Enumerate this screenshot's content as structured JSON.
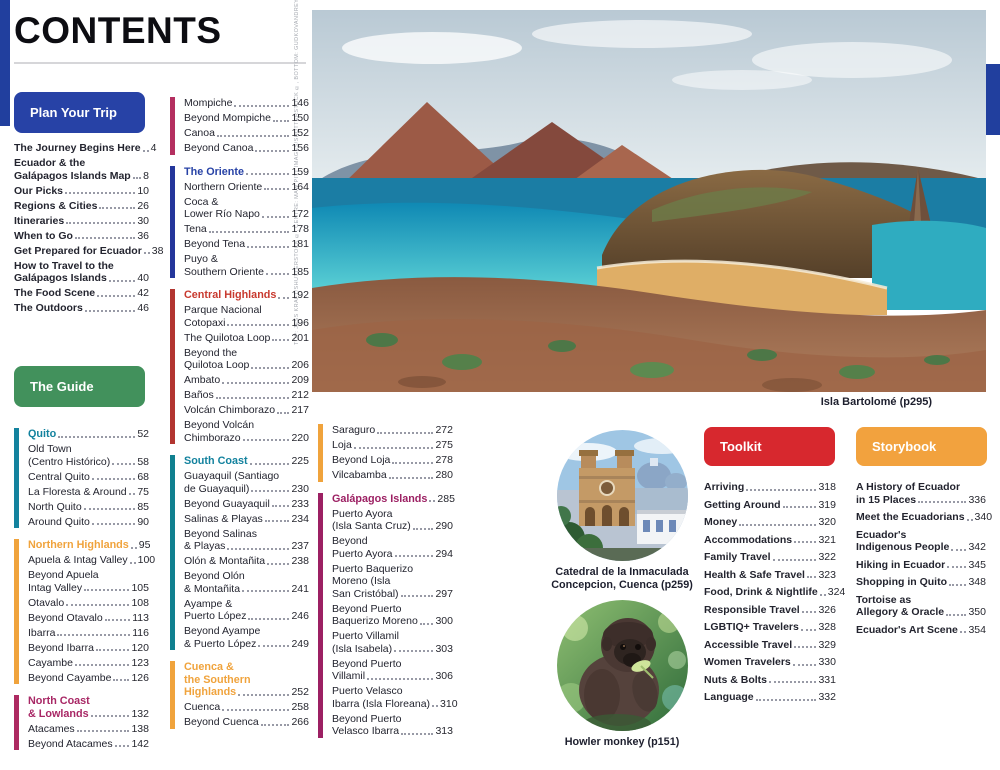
{
  "page_title": "CONTENTS",
  "credits_vertical": "TOP: JESS KRAFT/SHUTTERSTOCK ©, CENTRE: MAW PITT IMAGES/SHUTTERSTOCK ©, BOTTOM: GUDKOVANDREY/SHUTTERSTOCK ©",
  "colors": {
    "accent_blue": "#213f9e",
    "plan_btn": "#2742a6",
    "guide_btn": "#42915c",
    "toolkit_btn": "#d7282e",
    "storybook_btn": "#f2a23e",
    "teal": "#13829e",
    "orange": "#f0a33c",
    "magenta": "#ad2a62",
    "blue": "#2742a6",
    "red": "#c0362c",
    "purple": "#9c2063"
  },
  "buttons": {
    "plan": "Plan Your Trip",
    "guide": "The Guide",
    "toolkit": "Toolkit",
    "storybook": "Storybook"
  },
  "captions": {
    "main_photo": "Isla Bartolomé (p295)",
    "circle1_line1": "Catedral de la Inmaculada",
    "circle1_line2": "Concepcion, Cuenca (p259)",
    "circle2": "Howler monkey (p151)"
  },
  "plan_items": [
    {
      "lines": [
        "The Journey Begins Here"
      ],
      "page": "4"
    },
    {
      "lines": [
        "Ecuador & the",
        "Galápagos Islands Map"
      ],
      "page": "8"
    },
    {
      "lines": [
        "Our Picks"
      ],
      "page": "10"
    },
    {
      "lines": [
        "Regions & Cities"
      ],
      "page": "26"
    },
    {
      "lines": [
        "Itineraries"
      ],
      "page": "30"
    },
    {
      "lines": [
        "When to Go"
      ],
      "page": "36"
    },
    {
      "lines": [
        "Get Prepared for Ecuador"
      ],
      "page": "38"
    },
    {
      "lines": [
        "How to Travel to the",
        "Galápagos Islands"
      ],
      "page": "40"
    },
    {
      "lines": [
        "The Food Scene"
      ],
      "page": "42"
    },
    {
      "lines": [
        "The Outdoors"
      ],
      "page": "46"
    }
  ],
  "col1_sections": [
    {
      "bar": "#13829e",
      "items": [
        {
          "lines": [
            "Quito"
          ],
          "page": "52",
          "header": true,
          "color": "#13829e"
        },
        {
          "lines": [
            "Old Town",
            "(Centro Histórico)"
          ],
          "page": "58"
        },
        {
          "lines": [
            "Central Quito"
          ],
          "page": "68"
        },
        {
          "lines": [
            "La Floresta & Around"
          ],
          "page": "75"
        },
        {
          "lines": [
            "North Quito"
          ],
          "page": "85"
        },
        {
          "lines": [
            "Around Quito"
          ],
          "page": "90"
        }
      ]
    },
    {
      "bar": "#f0a33c",
      "items": [
        {
          "lines": [
            "Northern Highlands"
          ],
          "page": "95",
          "header": true,
          "color": "#f0a33c"
        },
        {
          "lines": [
            "Apuela & Intag Valley"
          ],
          "page": "100"
        },
        {
          "lines": [
            "Beyond Apuela",
            "Intag Valley"
          ],
          "page": "105"
        },
        {
          "lines": [
            "Otavalo"
          ],
          "page": "108"
        },
        {
          "lines": [
            "Beyond Otavalo"
          ],
          "page": "113"
        },
        {
          "lines": [
            "Ibarra"
          ],
          "page": "116"
        },
        {
          "lines": [
            "Beyond Ibarra"
          ],
          "page": "120"
        },
        {
          "lines": [
            "Cayambe"
          ],
          "page": "123"
        },
        {
          "lines": [
            "Beyond Cayambe"
          ],
          "page": "126"
        }
      ]
    },
    {
      "bar": "#ad2a62",
      "items": [
        {
          "lines": [
            "North Coast",
            "& Lowlands"
          ],
          "page": "132",
          "header": true,
          "color": "#a82765"
        },
        {
          "lines": [
            "Atacames"
          ],
          "page": "138"
        },
        {
          "lines": [
            "Beyond Atacames"
          ],
          "page": "142"
        }
      ]
    }
  ],
  "col2_sections": [
    {
      "bar": "#b42f60",
      "items": [
        {
          "lines": [
            "Mompiche"
          ],
          "page": "146"
        },
        {
          "lines": [
            "Beyond Mompiche"
          ],
          "page": "150"
        },
        {
          "lines": [
            "Canoa"
          ],
          "page": "152"
        },
        {
          "lines": [
            "Beyond Canoa"
          ],
          "page": "156"
        }
      ]
    },
    {
      "bar": "#24369b",
      "items": [
        {
          "lines": [
            "The Oriente"
          ],
          "page": "159",
          "header": true,
          "color": "#2742a6"
        },
        {
          "lines": [
            "Northern Oriente"
          ],
          "page": "164"
        },
        {
          "lines": [
            "Coca &",
            "Lower Río Napo"
          ],
          "page": "172"
        },
        {
          "lines": [
            "Tena"
          ],
          "page": "178"
        },
        {
          "lines": [
            "Beyond Tena"
          ],
          "page": "181"
        },
        {
          "lines": [
            "Puyo &",
            "Southern Oriente"
          ],
          "page": "185"
        }
      ]
    },
    {
      "bar": "#b23530",
      "items": [
        {
          "lines": [
            "Central Highlands"
          ],
          "page": "192",
          "header": true,
          "color": "#c8392e"
        },
        {
          "lines": [
            "Parque Nacional",
            "Cotopaxi"
          ],
          "page": "196"
        },
        {
          "lines": [
            "The Quilotoa Loop"
          ],
          "page": "201"
        },
        {
          "lines": [
            "Beyond the",
            "Quilotoa Loop"
          ],
          "page": "206"
        },
        {
          "lines": [
            "Ambato"
          ],
          "page": "209"
        },
        {
          "lines": [
            "Baños"
          ],
          "page": "212"
        },
        {
          "lines": [
            "Volcán Chimborazo"
          ],
          "page": "217"
        },
        {
          "lines": [
            "Beyond Volcán",
            "Chimborazo"
          ],
          "page": "220"
        }
      ]
    },
    {
      "bar": "#10808f",
      "items": [
        {
          "lines": [
            "South Coast"
          ],
          "page": "225",
          "header": true,
          "color": "#13829e"
        },
        {
          "lines": [
            "Guayaquil (Santiago",
            "de Guayaquil)"
          ],
          "page": "230"
        },
        {
          "lines": [
            "Beyond Guayaquil"
          ],
          "page": "233"
        },
        {
          "lines": [
            "Salinas & Playas"
          ],
          "page": "234"
        },
        {
          "lines": [
            "Beyond Salinas",
            "& Playas"
          ],
          "page": "237"
        },
        {
          "lines": [
            "Olón & Montañita"
          ],
          "page": "238"
        },
        {
          "lines": [
            "Beyond Olón",
            "& Montañita"
          ],
          "page": "241"
        },
        {
          "lines": [
            "Ayampe &",
            "Puerto López"
          ],
          "page": "246"
        },
        {
          "lines": [
            "Beyond Ayampe",
            "& Puerto López"
          ],
          "page": "249"
        }
      ]
    },
    {
      "bar": "#f0a33c",
      "items": [
        {
          "lines": [
            "Cuenca &",
            "the Southern",
            "Highlands"
          ],
          "page": "252",
          "header": true,
          "color": "#f0a33c"
        },
        {
          "lines": [
            "Cuenca"
          ],
          "page": "258"
        },
        {
          "lines": [
            "Beyond Cuenca"
          ],
          "page": "266"
        }
      ]
    }
  ],
  "col3_sections": [
    {
      "bar": "#f0a33c",
      "items": [
        {
          "lines": [
            "Saraguro"
          ],
          "page": "272"
        },
        {
          "lines": [
            "Loja"
          ],
          "page": "275"
        },
        {
          "lines": [
            "Beyond Loja"
          ],
          "page": "278"
        },
        {
          "lines": [
            "Vilcabamba"
          ],
          "page": "280"
        }
      ]
    },
    {
      "bar": "#9c2063",
      "items": [
        {
          "lines": [
            "Galápagos Islands"
          ],
          "page": "285",
          "header": true,
          "color": "#9c2063"
        },
        {
          "lines": [
            "Puerto Ayora",
            "(Isla Santa Cruz)"
          ],
          "page": "290"
        },
        {
          "lines": [
            "Beyond",
            "Puerto Ayora"
          ],
          "page": "294"
        },
        {
          "lines": [
            "Puerto Baquerizo",
            "Moreno (Isla",
            "San Cristóbal)"
          ],
          "page": "297"
        },
        {
          "lines": [
            "Beyond Puerto",
            "Baquerizo Moreno"
          ],
          "page": "300"
        },
        {
          "lines": [
            "Puerto Villamil",
            "(Isla Isabela)"
          ],
          "page": "303"
        },
        {
          "lines": [
            "Beyond Puerto",
            "Villamil"
          ],
          "page": "306"
        },
        {
          "lines": [
            "Puerto Velasco",
            "Ibarra (Isla Floreana)"
          ],
          "page": "310"
        },
        {
          "lines": [
            "Beyond Puerto",
            "Velasco Ibarra"
          ],
          "page": "313"
        }
      ]
    }
  ],
  "toolkit_items": [
    {
      "lines": [
        "Arriving"
      ],
      "page": "318"
    },
    {
      "lines": [
        "Getting Around"
      ],
      "page": "319"
    },
    {
      "lines": [
        "Money"
      ],
      "page": "320"
    },
    {
      "lines": [
        "Accommodations"
      ],
      "page": "321"
    },
    {
      "lines": [
        "Family Travel"
      ],
      "page": "322"
    },
    {
      "lines": [
        "Health & Safe Travel"
      ],
      "page": "323"
    },
    {
      "lines": [
        "Food, Drink & Nightlife"
      ],
      "page": "324"
    },
    {
      "lines": [
        "Responsible Travel"
      ],
      "page": "326"
    },
    {
      "lines": [
        "LGBTIQ+ Travelers"
      ],
      "page": "328"
    },
    {
      "lines": [
        "Accessible Travel"
      ],
      "page": "329"
    },
    {
      "lines": [
        "Women Travelers"
      ],
      "page": "330"
    },
    {
      "lines": [
        "Nuts & Bolts"
      ],
      "page": "331"
    },
    {
      "lines": [
        "Language"
      ],
      "page": "332"
    }
  ],
  "storybook_items": [
    {
      "lines": [
        "A History of Ecuador",
        "in 15 Places"
      ],
      "page": "336"
    },
    {
      "lines": [
        "Meet the Ecuadorians"
      ],
      "page": "340"
    },
    {
      "lines": [
        "Ecuador's",
        "Indigenous People"
      ],
      "page": "342"
    },
    {
      "lines": [
        "Hiking in Ecuador"
      ],
      "page": "345"
    },
    {
      "lines": [
        "Shopping in Quito"
      ],
      "page": "348"
    },
    {
      "lines": [
        "Tortoise as",
        "Allegory & Oracle"
      ],
      "page": "350"
    },
    {
      "lines": [
        "Ecuador's Art Scene"
      ],
      "page": "354"
    }
  ]
}
